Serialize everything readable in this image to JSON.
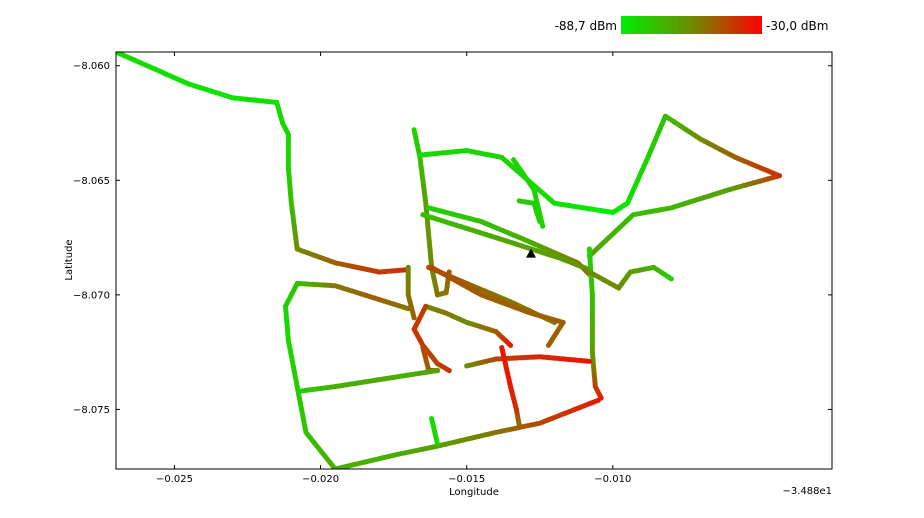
{
  "chart_data": {
    "type": "scatter",
    "title": "",
    "xlabel": "Longitude",
    "ylabel": "Latitude",
    "x_offset_label": "−3.488e1",
    "xlim": [
      -0.027,
      -0.0025
    ],
    "ylim": [
      -8.0776,
      -8.0594
    ],
    "x_ticks": [
      -0.025,
      -0.02,
      -0.015,
      -0.01
    ],
    "x_tick_labels": [
      "−0.025",
      "−0.020",
      "−0.015",
      "−0.010"
    ],
    "y_ticks": [
      -8.06,
      -8.065,
      -8.07,
      -8.075
    ],
    "y_tick_labels": [
      "−8.060",
      "−8.065",
      "−8.070",
      "−8.075"
    ],
    "grid": false,
    "colorbar": {
      "min_label": "-88,7 dBm",
      "max_label": "-30,0 dBm",
      "min_value": -88.7,
      "max_value": -30.0,
      "min_color": "#00ee00",
      "mid_color": "#6f8b00",
      "max_color": "#ff0000",
      "placement": "top-right"
    },
    "marker": {
      "symbol": "triangle",
      "x": -0.0128,
      "y": -8.0682,
      "color": "#000000"
    },
    "tracks": [
      {
        "points": [
          [
            -0.027,
            -8.0594,
            -82
          ],
          [
            -0.0245,
            -8.0608,
            -85
          ],
          [
            -0.023,
            -8.0614,
            -85
          ],
          [
            -0.0215,
            -8.0616,
            -84
          ],
          [
            -0.0213,
            -8.0625,
            -82
          ]
        ]
      },
      {
        "points": [
          [
            -0.0213,
            -8.0625,
            -82
          ],
          [
            -0.0211,
            -8.063,
            -82
          ],
          [
            -0.0211,
            -8.0645,
            -80
          ],
          [
            -0.021,
            -8.066,
            -75
          ],
          [
            -0.0208,
            -8.068,
            -60
          ],
          [
            -0.0195,
            -8.0686,
            -50
          ],
          [
            -0.018,
            -8.069,
            -42
          ],
          [
            -0.017,
            -8.0689,
            -40
          ]
        ]
      },
      {
        "points": [
          [
            -0.0168,
            -8.0628,
            -82
          ],
          [
            -0.0166,
            -8.064,
            -75
          ],
          [
            -0.0164,
            -8.066,
            -65
          ],
          [
            -0.0162,
            -8.0688,
            -60
          ],
          [
            -0.016,
            -8.07,
            -55
          ],
          [
            -0.0157,
            -8.0699,
            -55
          ],
          [
            -0.0156,
            -8.069,
            -50
          ]
        ]
      },
      {
        "points": [
          [
            -0.0166,
            -8.0639,
            -82
          ],
          [
            -0.015,
            -8.0637,
            -82
          ],
          [
            -0.0138,
            -8.064,
            -80
          ],
          [
            -0.012,
            -8.066,
            -84
          ],
          [
            -0.01,
            -8.0664,
            -88
          ]
        ]
      },
      {
        "points": [
          [
            -0.01,
            -8.0664,
            -88
          ],
          [
            -0.0095,
            -8.066,
            -85
          ],
          [
            -0.0088,
            -8.064,
            -80
          ],
          [
            -0.0082,
            -8.0622,
            -75
          ],
          [
            -0.007,
            -8.0632,
            -60
          ],
          [
            -0.0058,
            -8.064,
            -50
          ],
          [
            -0.0043,
            -8.0648,
            -40
          ]
        ]
      },
      {
        "points": [
          [
            -0.0043,
            -8.0648,
            -40
          ],
          [
            -0.006,
            -8.0654,
            -65
          ],
          [
            -0.008,
            -8.0662,
            -72
          ],
          [
            -0.0093,
            -8.0665,
            -75
          ],
          [
            -0.0103,
            -8.0677,
            -70
          ],
          [
            -0.0108,
            -8.0683,
            -65
          ]
        ]
      },
      {
        "points": [
          [
            -0.0134,
            -8.0641,
            -80
          ],
          [
            -0.0127,
            -8.0654,
            -82
          ],
          [
            -0.0124,
            -8.067,
            -80
          ]
        ]
      },
      {
        "points": [
          [
            -0.0132,
            -8.0659,
            -75
          ],
          [
            -0.0127,
            -8.066,
            -80
          ],
          [
            -0.0125,
            -8.0668,
            -80
          ]
        ]
      },
      {
        "points": [
          [
            -0.0163,
            -8.0662,
            -80
          ],
          [
            -0.0145,
            -8.0668,
            -75
          ],
          [
            -0.013,
            -8.0676,
            -70
          ],
          [
            -0.0112,
            -8.0686,
            -55
          ],
          [
            -0.0108,
            -8.0691,
            -50
          ]
        ]
      },
      {
        "points": [
          [
            -0.0165,
            -8.0665,
            -75
          ],
          [
            -0.014,
            -8.0675,
            -68
          ],
          [
            -0.0118,
            -8.0684,
            -65
          ],
          [
            -0.0108,
            -8.0689,
            -60
          ]
        ]
      },
      {
        "points": [
          [
            -0.0163,
            -8.0688,
            -45
          ],
          [
            -0.015,
            -8.0695,
            -50
          ],
          [
            -0.0135,
            -8.0703,
            -55
          ],
          [
            -0.012,
            -8.0712,
            -55
          ]
        ]
      },
      {
        "points": [
          [
            -0.0162,
            -8.0688,
            -45
          ],
          [
            -0.0145,
            -8.07,
            -50
          ],
          [
            -0.0128,
            -8.0708,
            -50
          ],
          [
            -0.0117,
            -8.0712,
            -50
          ],
          [
            -0.0122,
            -8.0722,
            -50
          ]
        ]
      },
      {
        "points": [
          [
            -0.0108,
            -8.068,
            -80
          ],
          [
            -0.0107,
            -8.07,
            -75
          ],
          [
            -0.0107,
            -8.0725,
            -65
          ],
          [
            -0.0106,
            -8.074,
            -45
          ],
          [
            -0.0104,
            -8.0745,
            -35
          ]
        ]
      },
      {
        "points": [
          [
            -0.0108,
            -8.069,
            -60
          ],
          [
            -0.0098,
            -8.0697,
            -60
          ],
          [
            -0.0094,
            -8.069,
            -65
          ],
          [
            -0.0086,
            -8.0688,
            -70
          ],
          [
            -0.008,
            -8.0693,
            -80
          ]
        ]
      },
      {
        "points": [
          [
            -0.0212,
            -8.0705,
            -82
          ],
          [
            -0.0211,
            -8.072,
            -82
          ],
          [
            -0.0208,
            -8.074,
            -78
          ],
          [
            -0.0205,
            -8.076,
            -76
          ],
          [
            -0.0195,
            -8.0776,
            -70
          ]
        ]
      },
      {
        "points": [
          [
            -0.0212,
            -8.0705,
            -80
          ],
          [
            -0.0208,
            -8.0695,
            -75
          ],
          [
            -0.0195,
            -8.0696,
            -55
          ],
          [
            -0.018,
            -8.0702,
            -50
          ],
          [
            -0.017,
            -8.0706,
            -55
          ]
        ]
      },
      {
        "points": [
          [
            -0.017,
            -8.0688,
            -60
          ],
          [
            -0.017,
            -8.07,
            -55
          ],
          [
            -0.0168,
            -8.071,
            -50
          ]
        ]
      },
      {
        "points": [
          [
            -0.0164,
            -8.0705,
            -60
          ],
          [
            -0.0157,
            -8.0708,
            -55
          ],
          [
            -0.015,
            -8.0712,
            -60
          ],
          [
            -0.014,
            -8.0716,
            -50
          ],
          [
            -0.0135,
            -8.0722,
            -35
          ]
        ]
      },
      {
        "points": [
          [
            -0.0164,
            -8.0705,
            -45
          ],
          [
            -0.0168,
            -8.0715,
            -40
          ],
          [
            -0.0165,
            -8.0722,
            -42
          ],
          [
            -0.016,
            -8.073,
            -45
          ],
          [
            -0.0156,
            -8.0733,
            -40
          ]
        ]
      },
      {
        "points": [
          [
            -0.0165,
            -8.0723,
            -45
          ],
          [
            -0.0163,
            -8.0733,
            -50
          ],
          [
            -0.016,
            -8.0733,
            -40
          ]
        ]
      },
      {
        "points": [
          [
            -0.0207,
            -8.0742,
            -80
          ],
          [
            -0.0195,
            -8.074,
            -70
          ],
          [
            -0.018,
            -8.0737,
            -68
          ],
          [
            -0.017,
            -8.0735,
            -70
          ],
          [
            -0.016,
            -8.0733,
            -65
          ]
        ]
      },
      {
        "points": [
          [
            -0.015,
            -8.0731,
            -60
          ],
          [
            -0.014,
            -8.0728,
            -45
          ],
          [
            -0.0125,
            -8.0727,
            -38
          ],
          [
            -0.0108,
            -8.0729,
            -35
          ]
        ]
      },
      {
        "points": [
          [
            -0.0138,
            -8.0723,
            -35
          ],
          [
            -0.0135,
            -8.074,
            -35
          ],
          [
            -0.0133,
            -8.075,
            -40
          ],
          [
            -0.0132,
            -8.0757,
            -55
          ]
        ]
      },
      {
        "points": [
          [
            -0.0195,
            -8.0776,
            -70
          ],
          [
            -0.0175,
            -8.077,
            -70
          ],
          [
            -0.016,
            -8.0766,
            -65
          ],
          [
            -0.014,
            -8.076,
            -55
          ],
          [
            -0.0125,
            -8.0756,
            -45
          ],
          [
            -0.0105,
            -8.0746,
            -35
          ]
        ]
      },
      {
        "points": [
          [
            -0.0162,
            -8.0754,
            -85
          ],
          [
            -0.016,
            -8.0765,
            -80
          ]
        ]
      }
    ]
  }
}
